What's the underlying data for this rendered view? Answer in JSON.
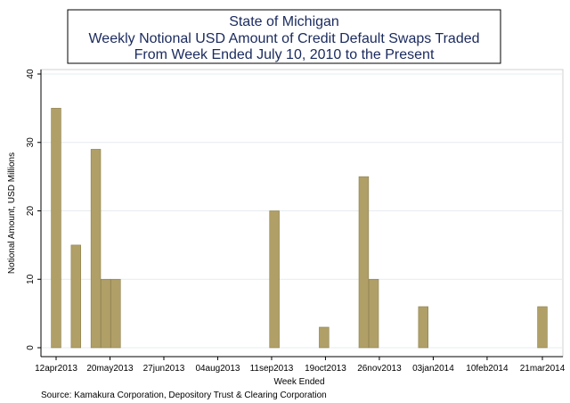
{
  "chart_data": {
    "type": "bar",
    "title": [
      "State of Michigan",
      "Weekly Notional USD Amount of Credit Default Swaps Traded",
      "From Week Ended July 10, 2010 to the Present"
    ],
    "xlabel": "Week Ended",
    "ylabel": "Notional Amount, USD Millions",
    "ylim": [
      0,
      40
    ],
    "yticks": [
      0,
      10,
      20,
      30,
      40
    ],
    "xticks": [
      {
        "label": "12apr2013",
        "date": "2013-04-12"
      },
      {
        "label": "20may2013",
        "date": "2013-05-20"
      },
      {
        "label": "27jun2013",
        "date": "2013-06-27"
      },
      {
        "label": "04aug2013",
        "date": "2013-08-04"
      },
      {
        "label": "11sep2013",
        "date": "2013-09-11"
      },
      {
        "label": "19oct2013",
        "date": "2013-10-19"
      },
      {
        "label": "26nov2013",
        "date": "2013-11-26"
      },
      {
        "label": "03jan2014",
        "date": "2014-01-03"
      },
      {
        "label": "10feb2014",
        "date": "2014-02-10"
      },
      {
        "label": "21mar2014",
        "date": "2014-03-21"
      }
    ],
    "grid": true,
    "bar_color": "#b0a068",
    "bars": [
      {
        "date": "2013-04-12",
        "value": 35
      },
      {
        "date": "2013-04-26",
        "value": 15
      },
      {
        "date": "2013-05-10",
        "value": 29
      },
      {
        "date": "2013-05-17",
        "value": 10
      },
      {
        "date": "2013-05-24",
        "value": 10
      },
      {
        "date": "2013-09-13",
        "value": 20
      },
      {
        "date": "2013-10-18",
        "value": 3
      },
      {
        "date": "2013-11-15",
        "value": 25
      },
      {
        "date": "2013-11-22",
        "value": 10
      },
      {
        "date": "2013-12-27",
        "value": 6
      },
      {
        "date": "2014-03-21",
        "value": 6
      }
    ]
  },
  "source_note": "Source: Kamakura Corporation, Depository Trust & Clearing Corporation"
}
